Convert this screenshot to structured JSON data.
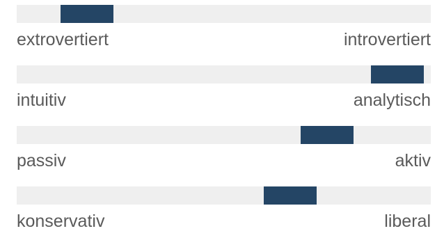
{
  "colors": {
    "track": "#efefef",
    "marker": "#244565",
    "label_text": "#5a5a5a"
  },
  "scales": [
    {
      "left_label": "extrovertiert",
      "right_label": "introvertiert",
      "value": 0.17
    },
    {
      "left_label": "intuitiv",
      "right_label": "analytisch",
      "value": 0.92
    },
    {
      "left_label": "passiv",
      "right_label": "aktiv",
      "value": 0.75
    },
    {
      "left_label": "konservativ",
      "right_label": "liberal",
      "value": 0.66
    }
  ]
}
